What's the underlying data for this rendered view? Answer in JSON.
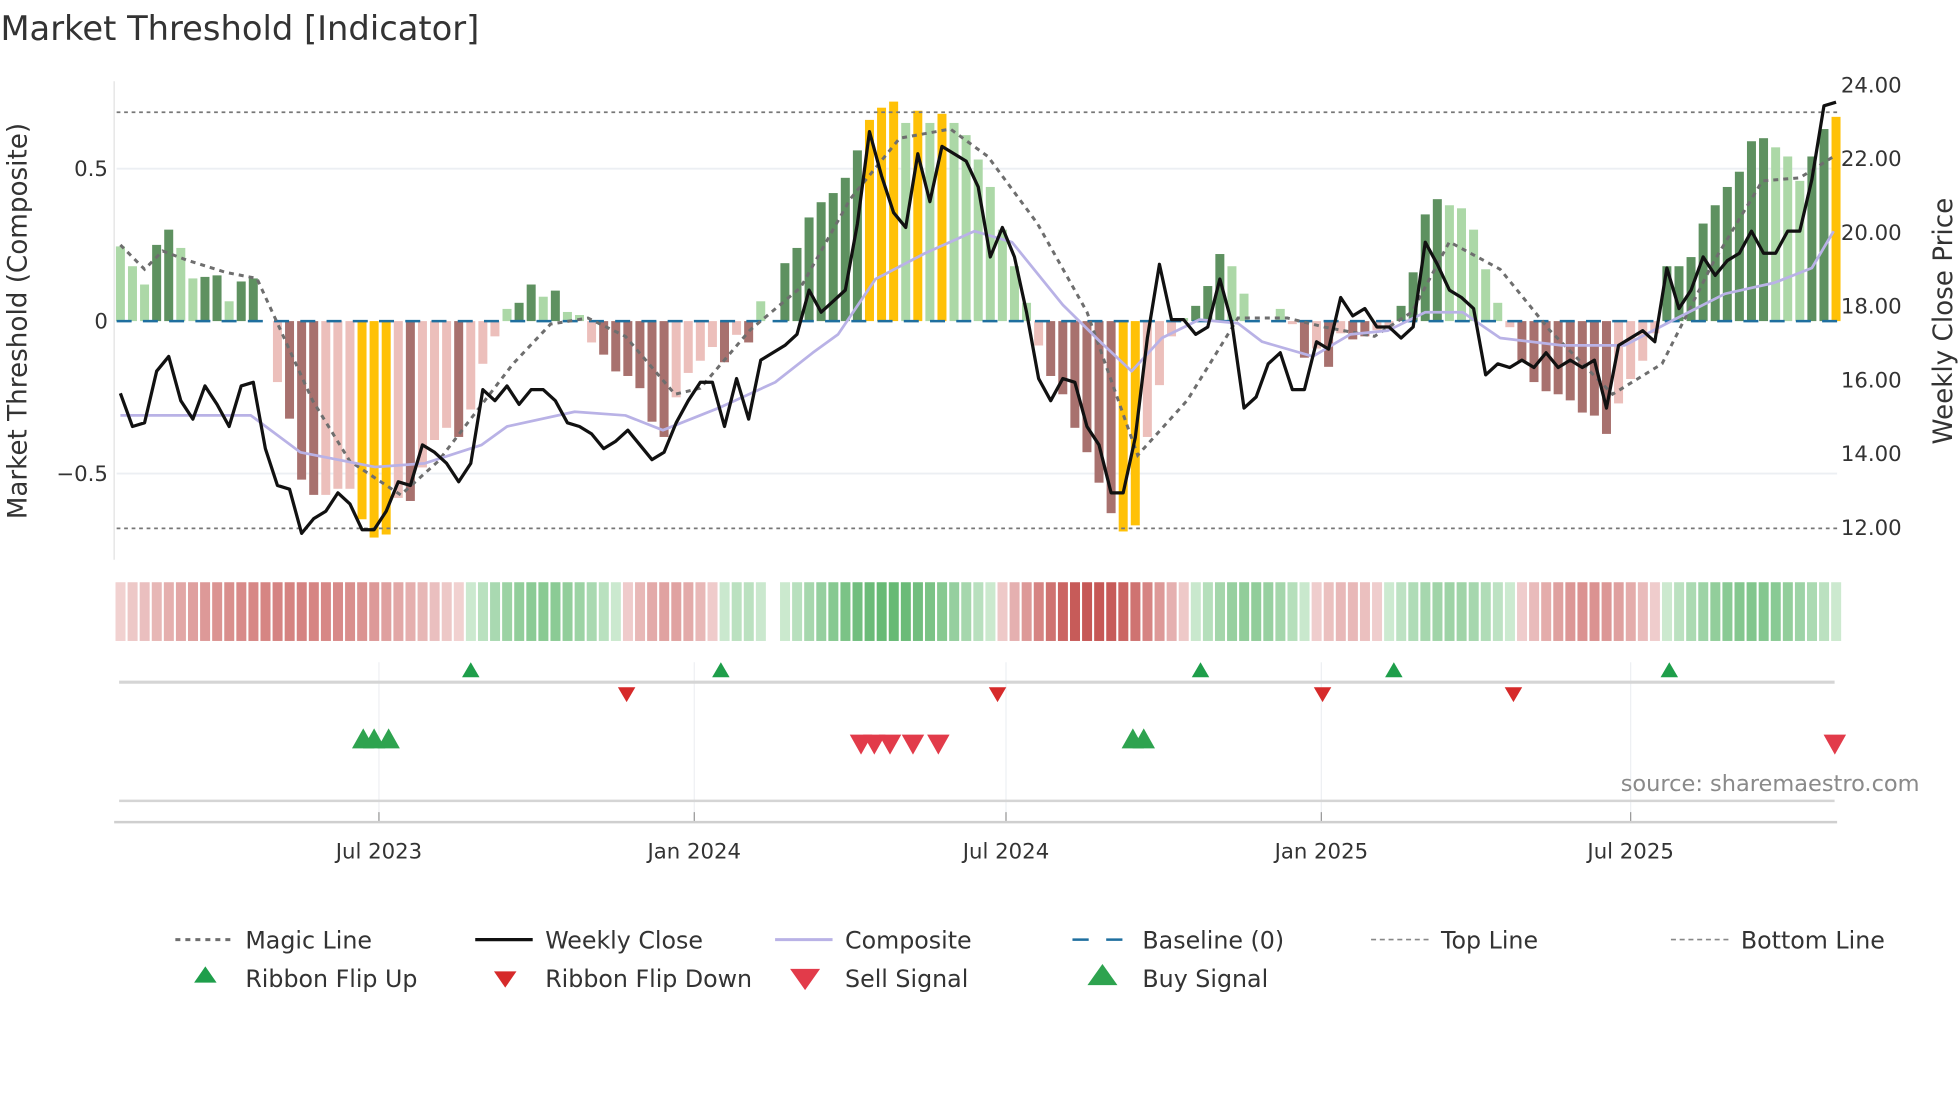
{
  "chart_data": {
    "type": "bar",
    "title": "Market Threshold [Indicator]",
    "ylabel_left": "Market Threshold (Composite)",
    "ylabel_right": "Weekly Close Price",
    "ylim_left": [
      -0.78,
      0.78
    ],
    "ylim_right": [
      11.2,
      24.3
    ],
    "left_ticks": [
      {
        "v": 0.5,
        "label": "0.5"
      },
      {
        "v": 0,
        "label": "0"
      },
      {
        "v": -0.5,
        "label": "−0.5"
      }
    ],
    "right_ticks": [
      {
        "v": 24,
        "label": "24.00"
      },
      {
        "v": 22,
        "label": "22.00"
      },
      {
        "v": 20,
        "label": "20.00"
      },
      {
        "v": 18,
        "label": "18.00"
      },
      {
        "v": 16,
        "label": "16.00"
      },
      {
        "v": 14,
        "label": "14.00"
      },
      {
        "v": 12,
        "label": "12.00"
      }
    ],
    "x_ticks": [
      {
        "week": 21.4,
        "label": "Jul 2023"
      },
      {
        "week": 47.5,
        "label": "Jan 2024"
      },
      {
        "week": 73.3,
        "label": "Jul 2024"
      },
      {
        "week": 99.4,
        "label": "Jan 2025"
      },
      {
        "week": 125,
        "label": "Jul 2025"
      }
    ],
    "top_line": 0.685,
    "bottom_line": -0.68,
    "baseline": 0,
    "colors": {
      "lg": "#acd8a7",
      "dg": "#5e9160",
      "lr": "#ecbfbb",
      "dr": "#a8716e",
      "au": "#ffc107",
      "close": "#111111",
      "composite": "#b9b2e6",
      "magic": "#6e6e6e",
      "baseline": "#1f6f9f",
      "flip_up": "#1e9e4a",
      "flip_down": "#d62a2a",
      "buy": "#2ea34f",
      "sell": "#e23b4a"
    },
    "histogram": [
      [
        0.245,
        "lg"
      ],
      [
        0.18,
        "lg"
      ],
      [
        0.12,
        "lg"
      ],
      [
        0.25,
        "dg"
      ],
      [
        0.3,
        "dg"
      ],
      [
        0.24,
        "lg"
      ],
      [
        0.14,
        "lg"
      ],
      [
        0.145,
        "dg"
      ],
      [
        0.15,
        "dg"
      ],
      [
        0.065,
        "lg"
      ],
      [
        0.13,
        "dg"
      ],
      [
        0.14,
        "dg"
      ],
      [
        0,
        "lg"
      ],
      [
        -0.2,
        "lr"
      ],
      [
        -0.32,
        "dr"
      ],
      [
        -0.52,
        "dr"
      ],
      [
        -0.57,
        "dr"
      ],
      [
        -0.57,
        "lr"
      ],
      [
        -0.55,
        "lr"
      ],
      [
        -0.55,
        "lr"
      ],
      [
        -0.65,
        "au"
      ],
      [
        -0.71,
        "au"
      ],
      [
        -0.7,
        "au"
      ],
      [
        -0.58,
        "lr"
      ],
      [
        -0.59,
        "dr"
      ],
      [
        -0.48,
        "lr"
      ],
      [
        -0.39,
        "lr"
      ],
      [
        -0.35,
        "lr"
      ],
      [
        -0.38,
        "dr"
      ],
      [
        -0.29,
        "lr"
      ],
      [
        -0.14,
        "lr"
      ],
      [
        -0.05,
        "lr"
      ],
      [
        0.04,
        "lg"
      ],
      [
        0.06,
        "dg"
      ],
      [
        0.12,
        "dg"
      ],
      [
        0.08,
        "lg"
      ],
      [
        0.1,
        "dg"
      ],
      [
        0.03,
        "lg"
      ],
      [
        0.02,
        "lg"
      ],
      [
        -0.07,
        "lr"
      ],
      [
        -0.11,
        "dr"
      ],
      [
        -0.165,
        "dr"
      ],
      [
        -0.18,
        "dr"
      ],
      [
        -0.22,
        "dr"
      ],
      [
        -0.33,
        "dr"
      ],
      [
        -0.38,
        "dr"
      ],
      [
        -0.25,
        "lr"
      ],
      [
        -0.17,
        "lr"
      ],
      [
        -0.13,
        "lr"
      ],
      [
        -0.085,
        "lr"
      ],
      [
        -0.135,
        "dr"
      ],
      [
        -0.045,
        "lr"
      ],
      [
        -0.07,
        "dr"
      ],
      [
        0.065,
        "lg"
      ],
      [
        0,
        "lg"
      ],
      [
        0.19,
        "dg"
      ],
      [
        0.24,
        "dg"
      ],
      [
        0.34,
        "dg"
      ],
      [
        0.39,
        "dg"
      ],
      [
        0.42,
        "dg"
      ],
      [
        0.47,
        "dg"
      ],
      [
        0.56,
        "dg"
      ],
      [
        0.66,
        "au"
      ],
      [
        0.7,
        "au"
      ],
      [
        0.72,
        "au"
      ],
      [
        0.65,
        "lg"
      ],
      [
        0.69,
        "au"
      ],
      [
        0.65,
        "lg"
      ],
      [
        0.68,
        "au"
      ],
      [
        0.65,
        "lg"
      ],
      [
        0.61,
        "lg"
      ],
      [
        0.53,
        "lg"
      ],
      [
        0.44,
        "lg"
      ],
      [
        0.3,
        "lg"
      ],
      [
        0.18,
        "lg"
      ],
      [
        0.06,
        "lg"
      ],
      [
        -0.08,
        "lr"
      ],
      [
        -0.18,
        "dr"
      ],
      [
        -0.24,
        "dr"
      ],
      [
        -0.35,
        "dr"
      ],
      [
        -0.43,
        "dr"
      ],
      [
        -0.53,
        "dr"
      ],
      [
        -0.63,
        "dr"
      ],
      [
        -0.69,
        "au"
      ],
      [
        -0.67,
        "au"
      ],
      [
        -0.38,
        "lr"
      ],
      [
        -0.21,
        "lr"
      ],
      [
        -0.05,
        "lr"
      ],
      [
        0.01,
        "lg"
      ],
      [
        0.05,
        "dg"
      ],
      [
        0.115,
        "dg"
      ],
      [
        0.22,
        "dg"
      ],
      [
        0.18,
        "lg"
      ],
      [
        0.09,
        "lg"
      ],
      [
        0,
        "lg"
      ],
      [
        0,
        "lg"
      ],
      [
        0.04,
        "lg"
      ],
      [
        -0.01,
        "lr"
      ],
      [
        -0.12,
        "dr"
      ],
      [
        -0.09,
        "lr"
      ],
      [
        -0.15,
        "dr"
      ],
      [
        -0.04,
        "lr"
      ],
      [
        -0.06,
        "dr"
      ],
      [
        -0.05,
        "dr"
      ],
      [
        -0.03,
        "lr"
      ],
      [
        -0.02,
        "lr"
      ],
      [
        0.05,
        "dg"
      ],
      [
        0.16,
        "dg"
      ],
      [
        0.35,
        "dg"
      ],
      [
        0.4,
        "dg"
      ],
      [
        0.38,
        "lg"
      ],
      [
        0.37,
        "lg"
      ],
      [
        0.3,
        "lg"
      ],
      [
        0.17,
        "lg"
      ],
      [
        0.06,
        "lg"
      ],
      [
        -0.02,
        "lr"
      ],
      [
        -0.13,
        "dr"
      ],
      [
        -0.2,
        "dr"
      ],
      [
        -0.23,
        "dr"
      ],
      [
        -0.24,
        "dr"
      ],
      [
        -0.26,
        "dr"
      ],
      [
        -0.3,
        "dr"
      ],
      [
        -0.31,
        "dr"
      ],
      [
        -0.37,
        "dr"
      ],
      [
        -0.27,
        "lr"
      ],
      [
        -0.19,
        "lr"
      ],
      [
        -0.13,
        "lr"
      ],
      [
        -0.04,
        "lr"
      ],
      [
        0.18,
        "dg"
      ],
      [
        0.18,
        "dg"
      ],
      [
        0.21,
        "dg"
      ],
      [
        0.32,
        "dg"
      ],
      [
        0.38,
        "dg"
      ],
      [
        0.44,
        "dg"
      ],
      [
        0.49,
        "dg"
      ],
      [
        0.59,
        "dg"
      ],
      [
        0.6,
        "dg"
      ],
      [
        0.57,
        "lg"
      ],
      [
        0.54,
        "lg"
      ],
      [
        0.46,
        "lg"
      ],
      [
        0.54,
        "dg"
      ],
      [
        0.63,
        "dg"
      ],
      [
        0.67,
        "au"
      ]
    ],
    "weekly_close": [
      15.6,
      14.7,
      14.8,
      16.2,
      16.6,
      15.4,
      14.9,
      15.8,
      15.3,
      14.7,
      15.8,
      15.9,
      14.1,
      13.1,
      13.0,
      11.8,
      12.2,
      12.4,
      12.9,
      12.6,
      11.9,
      11.9,
      12.4,
      13.2,
      13.1,
      14.2,
      14.0,
      13.7,
      13.2,
      13.7,
      15.7,
      15.4,
      15.8,
      15.3,
      15.7,
      15.7,
      15.4,
      14.8,
      14.7,
      14.5,
      14.1,
      14.3,
      14.6,
      14.2,
      13.8,
      14.0,
      14.8,
      15.4,
      15.9,
      15.9,
      14.7,
      16.0,
      14.9,
      16.5,
      16.7,
      16.9,
      17.2,
      18.4,
      17.8,
      18.1,
      18.4,
      20.2,
      22.7,
      21.5,
      20.5,
      20.1,
      22.1,
      20.8,
      22.3,
      22.1,
      21.9,
      21.2,
      19.3,
      20.1,
      19.3,
      17.8,
      16.0,
      15.4,
      16.0,
      15.9,
      14.7,
      14.2,
      12.9,
      12.9,
      14.4,
      17.1,
      19.1,
      17.6,
      17.6,
      17.2,
      17.4,
      18.7,
      17.5,
      15.2,
      15.5,
      16.4,
      16.7,
      15.7,
      15.7,
      17.0,
      16.8,
      18.2,
      17.7,
      17.9,
      17.4,
      17.4,
      17.1,
      17.4,
      19.7,
      19.1,
      18.4,
      18.2,
      17.9,
      16.1,
      16.4,
      16.3,
      16.5,
      16.3,
      16.7,
      16.3,
      16.5,
      16.3,
      16.5,
      15.2,
      16.9,
      17.1,
      17.3,
      17.0,
      19.0,
      17.9,
      18.4,
      19.3,
      18.8,
      19.2,
      19.4,
      20.0,
      19.4,
      19.4,
      20.0,
      20.0,
      21.4,
      23.4,
      23.5
    ],
    "magic_line": [
      [
        0,
        0.25
      ],
      [
        2,
        0.17
      ],
      [
        3.5,
        0.23
      ],
      [
        5.5,
        0.2
      ],
      [
        8.7,
        0.16
      ],
      [
        11.3,
        0.14
      ],
      [
        12.8,
        0.01
      ],
      [
        15.9,
        -0.26
      ],
      [
        19,
        -0.46
      ],
      [
        23.2,
        -0.57
      ],
      [
        26.3,
        -0.46
      ],
      [
        29.4,
        -0.3
      ],
      [
        32.5,
        -0.14
      ],
      [
        35.6,
        -0.01
      ],
      [
        38.7,
        0.01
      ],
      [
        41.8,
        -0.05
      ],
      [
        45.9,
        -0.24
      ],
      [
        48,
        -0.22
      ],
      [
        52.1,
        -0.03
      ],
      [
        56.3,
        0.11
      ],
      [
        60.4,
        0.4
      ],
      [
        64.5,
        0.6
      ],
      [
        68.7,
        0.63
      ],
      [
        71.8,
        0.54
      ],
      [
        75.9,
        0.32
      ],
      [
        80,
        0.03
      ],
      [
        84.2,
        -0.44
      ],
      [
        88.3,
        -0.26
      ],
      [
        92.5,
        0.01
      ],
      [
        96.6,
        0.01
      ],
      [
        99.7,
        -0.02
      ],
      [
        103.8,
        -0.05
      ],
      [
        106.9,
        0.03
      ],
      [
        110,
        0.26
      ],
      [
        114.2,
        0.17
      ],
      [
        118.3,
        -0.03
      ],
      [
        123.5,
        -0.24
      ],
      [
        127.6,
        -0.14
      ],
      [
        131.8,
        0.19
      ],
      [
        135.9,
        0.46
      ],
      [
        139,
        0.47
      ],
      [
        141.8,
        0.54
      ]
    ],
    "composite": [
      [
        0,
        15.0
      ],
      [
        10.8,
        15.0
      ],
      [
        14.9,
        14.0
      ],
      [
        21.1,
        13.6
      ],
      [
        25.2,
        13.7
      ],
      [
        29.9,
        14.2
      ],
      [
        32,
        14.7
      ],
      [
        37.6,
        15.1
      ],
      [
        41.8,
        15.0
      ],
      [
        44.9,
        14.6
      ],
      [
        49.5,
        15.2
      ],
      [
        54.2,
        15.9
      ],
      [
        57.3,
        16.7
      ],
      [
        59.4,
        17.2
      ],
      [
        62.5,
        18.7
      ],
      [
        66.6,
        19.4
      ],
      [
        70.7,
        20.0
      ],
      [
        73.8,
        19.7
      ],
      [
        78,
        18.0
      ],
      [
        81.1,
        17.0
      ],
      [
        83.7,
        16.2
      ],
      [
        86.2,
        17.1
      ],
      [
        89.3,
        17.6
      ],
      [
        92.5,
        17.5
      ],
      [
        94.5,
        17.0
      ],
      [
        98.7,
        16.6
      ],
      [
        101.8,
        17.2
      ],
      [
        104.9,
        17.3
      ],
      [
        108,
        17.8
      ],
      [
        111.1,
        17.8
      ],
      [
        114.2,
        17.1
      ],
      [
        119.3,
        16.9
      ],
      [
        124.5,
        16.9
      ],
      [
        128.6,
        17.6
      ],
      [
        132.8,
        18.3
      ],
      [
        136.9,
        18.6
      ],
      [
        140,
        19.0
      ],
      [
        141.8,
        20.0
      ]
    ],
    "ribbon": [
      {
        "from": 0,
        "to": 28,
        "trend": "bear",
        "strength": 0.55
      },
      {
        "from": 29,
        "to": 41,
        "trend": "bull",
        "strength": 0.55
      },
      {
        "from": 42,
        "to": 49,
        "trend": "bear",
        "strength": 0.35
      },
      {
        "from": 50,
        "to": 53,
        "trend": "bull",
        "strength": 0.2
      },
      {
        "from": 55,
        "to": 72,
        "trend": "bull",
        "strength": 0.8
      },
      {
        "from": 73,
        "to": 88,
        "trend": "bear",
        "strength": 0.85
      },
      {
        "from": 89,
        "to": 98,
        "trend": "bull",
        "strength": 0.5
      },
      {
        "from": 99,
        "to": 104,
        "trend": "bear",
        "strength": 0.2
      },
      {
        "from": 105,
        "to": 115,
        "trend": "bull",
        "strength": 0.4
      },
      {
        "from": 116,
        "to": 127,
        "trend": "bear",
        "strength": 0.45
      },
      {
        "from": 128,
        "to": 142,
        "trend": "bull",
        "strength": 0.6
      }
    ],
    "ribbon_flip_up": [
      29,
      49.7,
      89.4,
      105.4,
      128.2
    ],
    "ribbon_flip_down": [
      41.9,
      72.6,
      99.5,
      115.3
    ],
    "buy_signals": [
      20.1,
      21.0,
      22.2,
      83.8,
      84.7
    ],
    "sell_signals": [
      61.3,
      62.4,
      63.7,
      65.6,
      67.7,
      141.9
    ],
    "source": "source: sharemaestro.com",
    "legend": [
      {
        "label": "Magic Line",
        "kind": "magic"
      },
      {
        "label": "Weekly Close",
        "kind": "close"
      },
      {
        "label": "Composite",
        "kind": "composite"
      },
      {
        "label": "Baseline (0)",
        "kind": "baseline"
      },
      {
        "label": "Top Line",
        "kind": "top"
      },
      {
        "label": "Bottom Line",
        "kind": "bottom"
      },
      {
        "label": "Ribbon Flip Up",
        "kind": "flip_up"
      },
      {
        "label": "Ribbon Flip Down",
        "kind": "flip_down"
      },
      {
        "label": "Sell Signal",
        "kind": "sell"
      },
      {
        "label": "Buy Signal",
        "kind": "buy"
      }
    ]
  }
}
